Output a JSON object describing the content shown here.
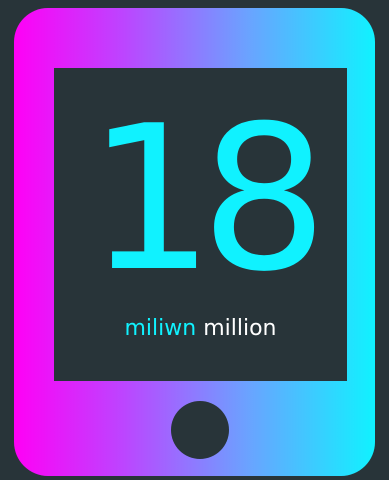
{
  "stat": {
    "value": "18",
    "label_welsh": "miliwn",
    "label_english": "million"
  },
  "colors": {
    "background": "#283439",
    "gradient_start": "#ff00f6",
    "gradient_mid": "#bd44ff",
    "gradient_end": "#10f2ff",
    "accent": "#10f2ff",
    "text_light": "#ffffff"
  },
  "icons": {
    "device": "tablet-device-icon",
    "home_button": "home-button-icon"
  }
}
